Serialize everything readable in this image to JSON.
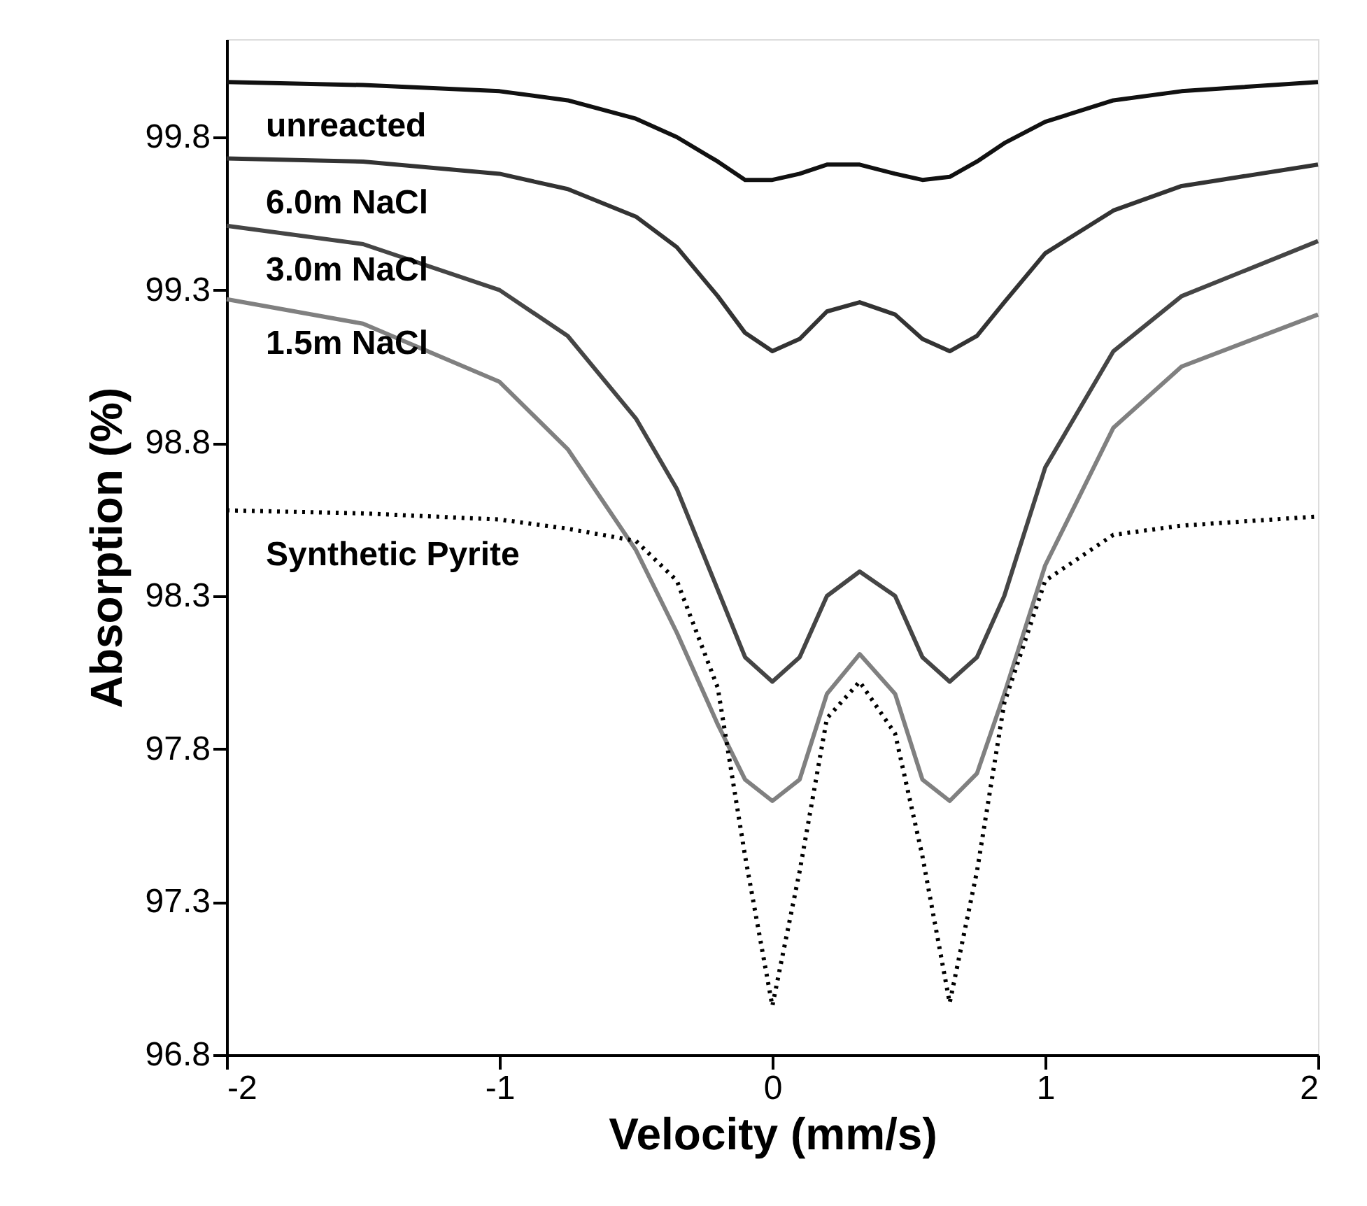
{
  "chart_data": {
    "type": "line",
    "xlabel": "Velocity (mm/s)",
    "ylabel": "Absorption (%)",
    "x": [
      -2,
      -1.5,
      -1,
      -0.75,
      -0.5,
      -0.35,
      -0.2,
      -0.1,
      0,
      0.1,
      0.2,
      0.32,
      0.45,
      0.55,
      0.65,
      0.75,
      0.85,
      1,
      1.25,
      1.5,
      2
    ],
    "series": [
      {
        "name": "unreacted",
        "color": "#111111",
        "line_style": "solid",
        "values": [
          99.98,
          99.97,
          99.95,
          99.92,
          99.86,
          99.8,
          99.72,
          99.66,
          99.66,
          99.68,
          99.71,
          99.71,
          99.68,
          99.66,
          99.67,
          99.72,
          99.78,
          99.85,
          99.92,
          99.95,
          99.98
        ]
      },
      {
        "name": "6.0m NaCl",
        "color": "#333333",
        "line_style": "solid",
        "values": [
          99.73,
          99.72,
          99.68,
          99.63,
          99.54,
          99.44,
          99.28,
          99.16,
          99.1,
          99.14,
          99.23,
          99.26,
          99.22,
          99.14,
          99.1,
          99.15,
          99.26,
          99.42,
          99.56,
          99.64,
          99.71
        ]
      },
      {
        "name": "3.0m NaCl",
        "color": "#454545",
        "line_style": "solid",
        "values": [
          99.51,
          99.45,
          99.3,
          99.15,
          98.88,
          98.65,
          98.32,
          98.1,
          98.02,
          98.1,
          98.3,
          98.38,
          98.3,
          98.1,
          98.02,
          98.1,
          98.3,
          98.72,
          99.1,
          99.28,
          99.46
        ]
      },
      {
        "name": "1.5m NaCl",
        "color": "#808080",
        "line_style": "solid",
        "values": [
          99.27,
          99.19,
          99.0,
          98.78,
          98.45,
          98.18,
          97.88,
          97.7,
          97.63,
          97.7,
          97.98,
          98.11,
          97.98,
          97.7,
          97.63,
          97.72,
          97.98,
          98.4,
          98.85,
          99.05,
          99.22
        ]
      },
      {
        "name": "Synthetic Pyrite",
        "color": "#000000",
        "line_style": "dotted",
        "values": [
          98.58,
          98.57,
          98.55,
          98.52,
          98.48,
          98.35,
          98.0,
          97.45,
          96.96,
          97.4,
          97.9,
          98.02,
          97.85,
          97.45,
          96.97,
          97.4,
          97.95,
          98.35,
          98.5,
          98.53,
          98.56
        ]
      }
    ],
    "xlim": [
      -2,
      2
    ],
    "xticks": [
      -2,
      -1,
      0,
      1,
      2
    ],
    "ylim": [
      96.8,
      100.12
    ],
    "yticks": [
      96.8,
      97.3,
      97.8,
      98.3,
      98.8,
      99.3,
      99.8
    ],
    "grid": false,
    "legend": false,
    "marker": "none"
  }
}
